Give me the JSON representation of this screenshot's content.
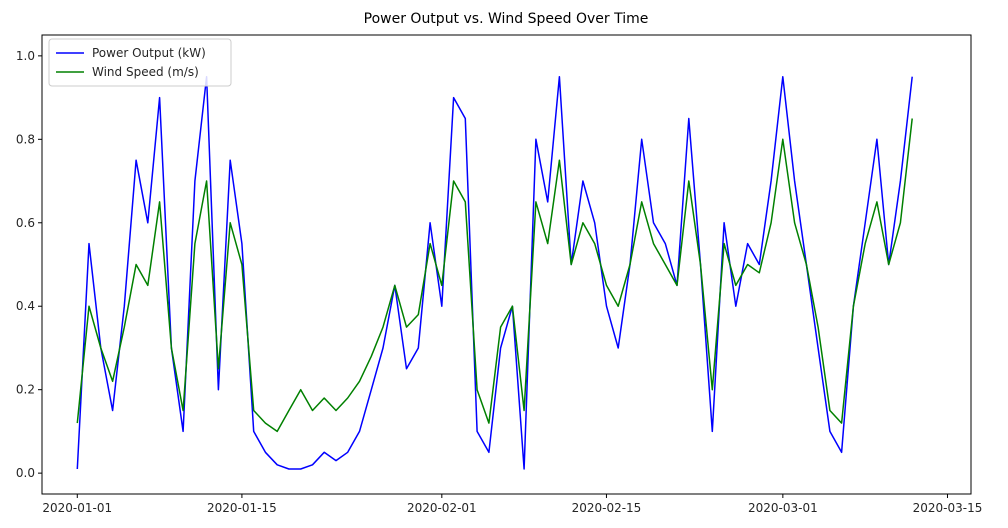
{
  "chart_data": {
    "type": "line",
    "title": "Power Output vs. Wind Speed Over Time",
    "xlabel": "",
    "ylabel": "",
    "x_range": [
      "2019-12-29",
      "2020-03-17"
    ],
    "x_ticks": [
      "2020-01-01",
      "2020-01-15",
      "2020-02-01",
      "2020-02-15",
      "2020-03-01",
      "2020-03-15"
    ],
    "ylim": [
      -0.05,
      1.05
    ],
    "y_ticks": [
      "0.0",
      "0.2",
      "0.4",
      "0.6",
      "0.8",
      "1.0"
    ],
    "grid": false,
    "legend_position": "upper-left",
    "colors": {
      "power": "#0000ff",
      "wind": "#008000"
    },
    "series": [
      {
        "name": "Power Output (kW)",
        "color": "#0000ff",
        "x": [
          "2020-01-01",
          "2020-01-02",
          "2020-01-03",
          "2020-01-04",
          "2020-01-05",
          "2020-01-06",
          "2020-01-07",
          "2020-01-08",
          "2020-01-09",
          "2020-01-10",
          "2020-01-11",
          "2020-01-12",
          "2020-01-13",
          "2020-01-14",
          "2020-01-15",
          "2020-01-16",
          "2020-01-17",
          "2020-01-18",
          "2020-01-19",
          "2020-01-20",
          "2020-01-21",
          "2020-01-22",
          "2020-01-23",
          "2020-01-24",
          "2020-01-25",
          "2020-01-26",
          "2020-01-27",
          "2020-01-28",
          "2020-01-29",
          "2020-01-30",
          "2020-01-31",
          "2020-02-01",
          "2020-02-02",
          "2020-02-03",
          "2020-02-04",
          "2020-02-05",
          "2020-02-06",
          "2020-02-07",
          "2020-02-08",
          "2020-02-09",
          "2020-02-10",
          "2020-02-11",
          "2020-02-12",
          "2020-02-13",
          "2020-02-14",
          "2020-02-15",
          "2020-02-16",
          "2020-02-17",
          "2020-02-18",
          "2020-02-19",
          "2020-02-20",
          "2020-02-21",
          "2020-02-22",
          "2020-02-23",
          "2020-02-24",
          "2020-02-25",
          "2020-02-26",
          "2020-02-27",
          "2020-02-28",
          "2020-02-29",
          "2020-03-01",
          "2020-03-02",
          "2020-03-03",
          "2020-03-04",
          "2020-03-05",
          "2020-03-06",
          "2020-03-07",
          "2020-03-08",
          "2020-03-09",
          "2020-03-10",
          "2020-03-11",
          "2020-03-12"
        ],
        "values": [
          0.01,
          0.55,
          0.3,
          0.15,
          0.4,
          0.75,
          0.6,
          0.9,
          0.3,
          0.1,
          0.7,
          0.95,
          0.2,
          0.75,
          0.55,
          0.1,
          0.05,
          0.02,
          0.01,
          0.01,
          0.02,
          0.05,
          0.03,
          0.05,
          0.1,
          0.2,
          0.3,
          0.45,
          0.25,
          0.3,
          0.6,
          0.4,
          0.9,
          0.85,
          0.1,
          0.05,
          0.3,
          0.4,
          0.01,
          0.8,
          0.65,
          0.95,
          0.5,
          0.7,
          0.6,
          0.4,
          0.3,
          0.5,
          0.8,
          0.6,
          0.55,
          0.45,
          0.85,
          0.5,
          0.1,
          0.6,
          0.4,
          0.55,
          0.5,
          0.7,
          0.95,
          0.7,
          0.5,
          0.3,
          0.1,
          0.05,
          0.4,
          0.6,
          0.8,
          0.5,
          0.7,
          0.95
        ]
      },
      {
        "name": "Wind Speed (m/s)",
        "color": "#008000",
        "x": [
          "2020-01-01",
          "2020-01-02",
          "2020-01-03",
          "2020-01-04",
          "2020-01-05",
          "2020-01-06",
          "2020-01-07",
          "2020-01-08",
          "2020-01-09",
          "2020-01-10",
          "2020-01-11",
          "2020-01-12",
          "2020-01-13",
          "2020-01-14",
          "2020-01-15",
          "2020-01-16",
          "2020-01-17",
          "2020-01-18",
          "2020-01-19",
          "2020-01-20",
          "2020-01-21",
          "2020-01-22",
          "2020-01-23",
          "2020-01-24",
          "2020-01-25",
          "2020-01-26",
          "2020-01-27",
          "2020-01-28",
          "2020-01-29",
          "2020-01-30",
          "2020-01-31",
          "2020-02-01",
          "2020-02-02",
          "2020-02-03",
          "2020-02-04",
          "2020-02-05",
          "2020-02-06",
          "2020-02-07",
          "2020-02-08",
          "2020-02-09",
          "2020-02-10",
          "2020-02-11",
          "2020-02-12",
          "2020-02-13",
          "2020-02-14",
          "2020-02-15",
          "2020-02-16",
          "2020-02-17",
          "2020-02-18",
          "2020-02-19",
          "2020-02-20",
          "2020-02-21",
          "2020-02-22",
          "2020-02-23",
          "2020-02-24",
          "2020-02-25",
          "2020-02-26",
          "2020-02-27",
          "2020-02-28",
          "2020-02-29",
          "2020-03-01",
          "2020-03-02",
          "2020-03-03",
          "2020-03-04",
          "2020-03-05",
          "2020-03-06",
          "2020-03-07",
          "2020-03-08",
          "2020-03-09",
          "2020-03-10",
          "2020-03-11",
          "2020-03-12"
        ],
        "values": [
          0.12,
          0.4,
          0.3,
          0.22,
          0.35,
          0.5,
          0.45,
          0.65,
          0.3,
          0.15,
          0.55,
          0.7,
          0.25,
          0.6,
          0.5,
          0.15,
          0.12,
          0.1,
          0.15,
          0.2,
          0.15,
          0.18,
          0.15,
          0.18,
          0.22,
          0.28,
          0.35,
          0.45,
          0.35,
          0.38,
          0.55,
          0.45,
          0.7,
          0.65,
          0.2,
          0.12,
          0.35,
          0.4,
          0.15,
          0.65,
          0.55,
          0.75,
          0.5,
          0.6,
          0.55,
          0.45,
          0.4,
          0.5,
          0.65,
          0.55,
          0.5,
          0.45,
          0.7,
          0.5,
          0.2,
          0.55,
          0.45,
          0.5,
          0.48,
          0.6,
          0.8,
          0.6,
          0.5,
          0.35,
          0.15,
          0.12,
          0.4,
          0.55,
          0.65,
          0.5,
          0.6,
          0.85
        ]
      }
    ]
  }
}
